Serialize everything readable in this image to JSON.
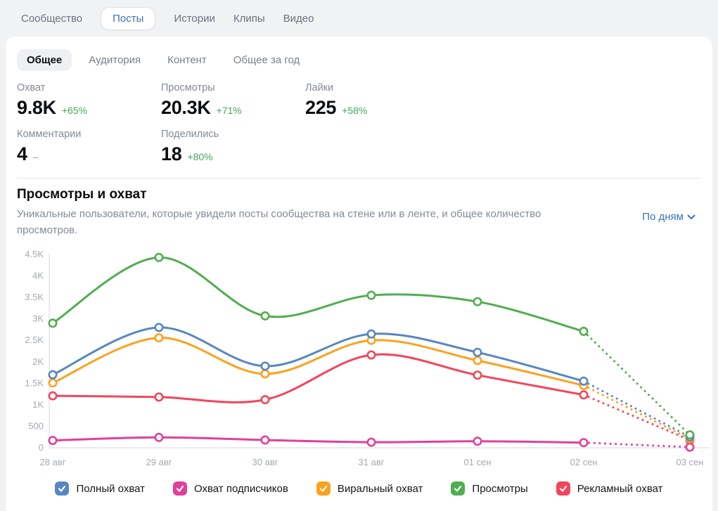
{
  "nav": {
    "items": [
      {
        "label": "Сообщество",
        "active": false
      },
      {
        "label": "Посты",
        "active": true
      },
      {
        "label": "Истории",
        "active": false
      },
      {
        "label": "Клипы",
        "active": false
      },
      {
        "label": "Видео",
        "active": false
      }
    ]
  },
  "tabs": {
    "items": [
      {
        "label": "Общее",
        "active": true
      },
      {
        "label": "Аудитория",
        "active": false
      },
      {
        "label": "Контент",
        "active": false
      },
      {
        "label": "Общее за год",
        "active": false
      }
    ]
  },
  "stats": [
    {
      "label": "Охват",
      "value": "9.8K",
      "delta": "+65%",
      "delta_type": "positive"
    },
    {
      "label": "Просмотры",
      "value": "20.3K",
      "delta": "+71%",
      "delta_type": "positive"
    },
    {
      "label": "Лайки",
      "value": "225",
      "delta": "+58%",
      "delta_type": "positive"
    },
    {
      "label": "Комментарии",
      "value": "4",
      "delta": "–",
      "delta_type": "neutral"
    },
    {
      "label": "Поделились",
      "value": "18",
      "delta": "+80%",
      "delta_type": "positive"
    }
  ],
  "section": {
    "title": "Просмотры и охват",
    "subtitle": "Уникальные пользователи, которые увидели посты сообщества на стене или в ленте, и общее количество просмотров.",
    "period_selector": "По дням"
  },
  "colors": {
    "accent_blue": "#3b73b8",
    "positive_green": "#44a857"
  },
  "chart_data": {
    "type": "line",
    "title": "Просмотры и охват",
    "x": [
      "28 авг",
      "29 авг",
      "30 авг",
      "31 авг",
      "01 сен",
      "02 сен",
      "03 сен"
    ],
    "series": [
      {
        "name": "Полный охват",
        "color": "#5787c1",
        "values": [
          1700,
          2800,
          1900,
          2650,
          2220,
          1550,
          250
        ]
      },
      {
        "name": "Охват подписчиков",
        "color": "#e0409c",
        "values": [
          170,
          240,
          180,
          130,
          150,
          120,
          15
        ]
      },
      {
        "name": "Виральный охват",
        "color": "#fba21d",
        "values": [
          1510,
          2560,
          1720,
          2500,
          2030,
          1450,
          210
        ]
      },
      {
        "name": "Просмотры",
        "color": "#4fae4e",
        "values": [
          2900,
          4430,
          3070,
          3550,
          3400,
          2710,
          300
        ]
      },
      {
        "name": "Рекламный охват",
        "color": "#f4455a",
        "values": [
          1210,
          1180,
          1120,
          2160,
          1690,
          1230,
          180
        ]
      }
    ],
    "ylim": [
      0,
      4500
    ],
    "yticks": [
      "0",
      "500",
      "1K",
      "1.5K",
      "2K",
      "2.5K",
      "3K",
      "3.5K",
      "4K",
      "4.5K"
    ],
    "grid": false,
    "legend_position": "bottom",
    "last_segment_style": "dotted"
  }
}
